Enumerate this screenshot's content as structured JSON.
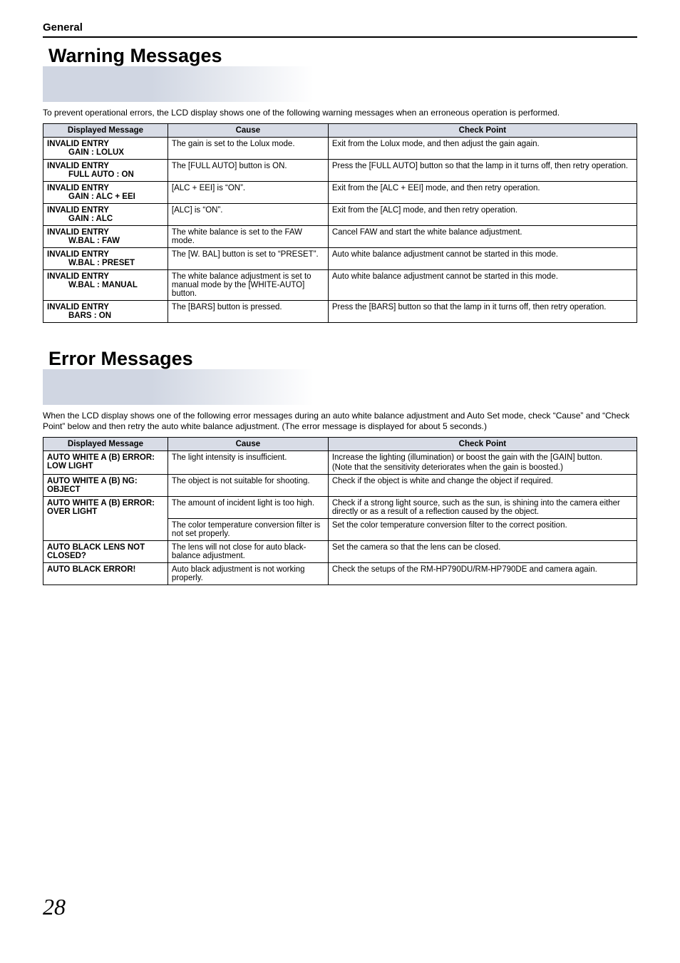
{
  "page": {
    "section_header": "General",
    "page_number": "28"
  },
  "warning": {
    "title": "Warning Messages",
    "intro": "To prevent operational errors, the LCD display shows one of the following warning messages when an erroneous operation is performed.",
    "headers": {
      "msg": "Displayed Message",
      "cause": "Cause",
      "check": "Check Point"
    },
    "rows": [
      {
        "msg1": "INVALID ENTRY",
        "msg2": "GAIN : LOLUX",
        "cause": "The gain is set to the Lolux mode.",
        "check": "Exit from the Lolux mode, and then adjust the gain again."
      },
      {
        "msg1": "INVALID ENTRY",
        "msg2": "FULL AUTO : ON",
        "cause": "The [FULL AUTO] button is ON.",
        "check": "Press the [FULL AUTO] button so that the lamp in it turns off, then retry operation."
      },
      {
        "msg1": "INVALID ENTRY",
        "msg2": "GAIN : ALC + EEI",
        "cause": "[ALC + EEI] is “ON”.",
        "check": "Exit from the [ALC + EEI] mode, and then retry operation."
      },
      {
        "msg1": "INVALID ENTRY",
        "msg2": "GAIN : ALC",
        "cause": "[ALC] is “ON”.",
        "check": "Exit from the [ALC] mode, and then retry operation."
      },
      {
        "msg1": "INVALID ENTRY",
        "msg2": "W.BAL : FAW",
        "cause": "The white balance is set to the FAW mode.",
        "check": "Cancel FAW and start the white balance adjustment."
      },
      {
        "msg1": "INVALID ENTRY",
        "msg2": "W.BAL : PRESET",
        "cause": "The [W. BAL] button is set to “PRESET”.",
        "check": "Auto white balance adjustment cannot be started in this mode."
      },
      {
        "msg1": "INVALID ENTRY",
        "msg2": "W.BAL : MANUAL",
        "cause": "The white balance adjustment is set to manual mode by the [WHITE-AUTO] button.",
        "check": "Auto white balance adjustment cannot be started in this mode."
      },
      {
        "msg1": "INVALID ENTRY",
        "msg2": "BARS : ON",
        "cause": "The [BARS] button is pressed.",
        "check": "Press the [BARS] button so that the lamp in it turns off, then retry operation."
      }
    ]
  },
  "error": {
    "title": "Error Messages",
    "intro": "When the LCD display shows one of the following error messages during an auto white balance adjustment and  Auto Set mode, check “Cause” and “Check Point” below and then retry the auto white balance adjustment. (The error message is displayed for about 5 seconds.)",
    "headers": {
      "msg": "Displayed Message",
      "cause": "Cause",
      "check": "Check Point"
    },
    "rows": [
      {
        "msg": "AUTO WHITE A (B) ERROR: LOW LIGHT",
        "cause": "The light intensity is insufficient.",
        "check": "Increase the lighting (illumination) or boost the gain with the [GAIN] button.\n(Note that the sensitivity deteriorates when the gain is boosted.)",
        "rowspan_msg": 1
      },
      {
        "msg": "AUTO WHITE A (B) NG: OBJECT",
        "cause": "The object is not suitable for shooting.",
        "check": "Check if the object is white and change the object if required.",
        "rowspan_msg": 1
      },
      {
        "msg": "AUTO WHITE A (B) ERROR: OVER LIGHT",
        "cause": "The amount of incident light is too high.",
        "check": "Check if a strong light source, such as the sun, is shining into the camera either directly or as a result of a reflection caused by the object.",
        "rowspan_msg": 2
      },
      {
        "msg": "",
        "cause": "The color temperature conversion filter is not set properly.",
        "check": "Set the color temperature conversion filter to the correct position.",
        "rowspan_msg": 0
      },
      {
        "msg": "AUTO BLACK LENS NOT CLOSED?",
        "cause": "The lens will not close for auto black-balance adjustment.",
        "check": "Set the camera so that the lens can be closed.",
        "rowspan_msg": 1
      },
      {
        "msg": "AUTO BLACK ERROR!",
        "cause": "Auto black adjustment is not working properly.",
        "check": "Check the setups of the RM-HP790DU/RM-HP790DE and camera again.",
        "rowspan_msg": 1
      }
    ]
  }
}
